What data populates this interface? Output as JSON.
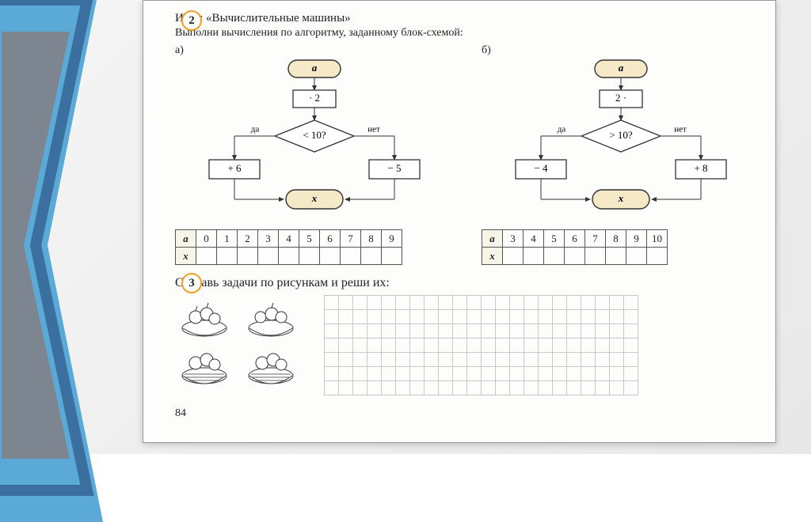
{
  "exercise2": {
    "badge": "2",
    "title": "Игра: «Вычислительные машины»",
    "subtitle": "Выполни вычисления по алгоритму, заданному блок-схемой:",
    "partA": {
      "label": "а)",
      "flow": {
        "start": "a",
        "op1": "· 2",
        "decision": "< 10?",
        "yes_label": "да",
        "no_label": "нет",
        "yes_op": "+ 6",
        "no_op": "− 5",
        "end": "x"
      },
      "table": {
        "row_a_label": "a",
        "row_x_label": "x",
        "a_values": [
          "0",
          "1",
          "2",
          "3",
          "4",
          "5",
          "6",
          "7",
          "8",
          "9"
        ],
        "x_values": [
          "",
          "",
          "",
          "",
          "",
          "",
          "",
          "",
          "",
          ""
        ]
      }
    },
    "partB": {
      "label": "б)",
      "flow": {
        "start": "a",
        "op1": "2 ·",
        "decision": "> 10?",
        "yes_label": "да",
        "no_label": "нет",
        "yes_op": "− 4",
        "no_op": "+ 8",
        "end": "x"
      },
      "table": {
        "row_a_label": "a",
        "row_x_label": "x",
        "a_values": [
          "3",
          "4",
          "5",
          "6",
          "7",
          "8",
          "9",
          "10"
        ],
        "x_values": [
          "",
          "",
          "",
          "",
          "",
          "",
          "",
          ""
        ]
      }
    }
  },
  "exercise3": {
    "badge": "3",
    "text": "Составь задачи по рисункам и реши их:"
  },
  "page_number": "84",
  "style": {
    "accent_chevron_outer": "#5aa9d6",
    "accent_chevron_inner": "#3b6fa0",
    "badge_border": "#f0a020",
    "terminator_fill": "#f6e9c8",
    "grid_line": "#c8c8c8"
  }
}
